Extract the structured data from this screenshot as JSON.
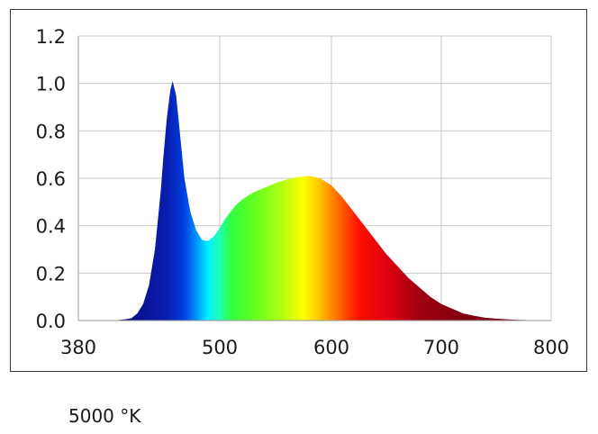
{
  "chart_data": {
    "type": "area",
    "title": "",
    "xlabel": "",
    "ylabel": "",
    "xlim": [
      380,
      800
    ],
    "ylim": [
      0,
      1.2
    ],
    "grid": true,
    "x_ticks": [
      "380",
      "500",
      "600",
      "700",
      "800"
    ],
    "y_ticks": [
      "1.2",
      "1.0",
      "0.8",
      "0.6",
      "0.4",
      "0.2",
      "0.0"
    ],
    "fill": "visible-spectrum gradient",
    "series": [
      {
        "x": [
          380,
          390,
          400,
          410,
          420,
          425,
          430,
          435,
          440,
          445,
          450,
          452,
          455,
          458,
          460,
          463,
          465,
          468,
          470,
          475,
          480,
          485,
          490,
          495,
          500,
          505,
          510,
          515,
          520,
          530,
          540,
          550,
          560,
          570,
          580,
          590,
          600,
          610,
          620,
          630,
          640,
          650,
          660,
          670,
          680,
          690,
          700,
          710,
          720,
          730,
          740,
          750,
          760,
          770,
          780,
          790,
          800
        ],
        "values": [
          0.0,
          0.0,
          0.0,
          0.0,
          0.005,
          0.01,
          0.03,
          0.07,
          0.15,
          0.3,
          0.55,
          0.68,
          0.85,
          0.97,
          1.01,
          0.95,
          0.85,
          0.7,
          0.6,
          0.46,
          0.38,
          0.34,
          0.335,
          0.355,
          0.39,
          0.43,
          0.46,
          0.49,
          0.51,
          0.54,
          0.56,
          0.58,
          0.595,
          0.605,
          0.61,
          0.6,
          0.57,
          0.52,
          0.46,
          0.4,
          0.34,
          0.28,
          0.23,
          0.18,
          0.14,
          0.1,
          0.07,
          0.05,
          0.03,
          0.02,
          0.012,
          0.008,
          0.005,
          0.003,
          0.002,
          0.001,
          0.0
        ]
      }
    ]
  },
  "caption": "5000 °K"
}
